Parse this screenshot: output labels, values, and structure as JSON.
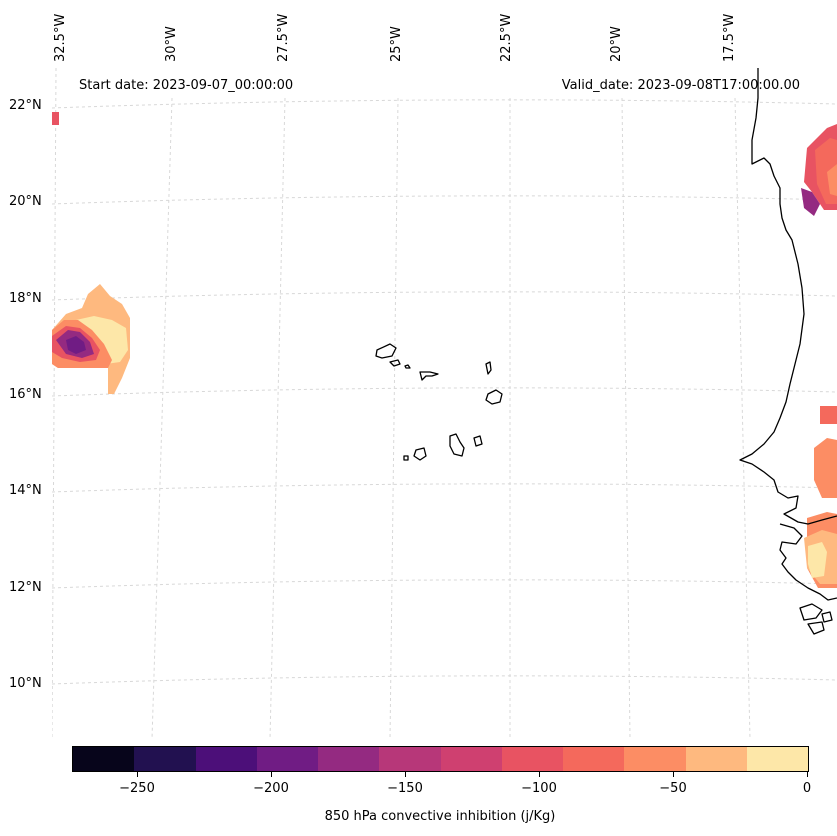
{
  "header": {
    "start_date": "Start date: 2023-09-07_00:00:00",
    "valid_date": "Valid_date: 2023-09-08T17:00:00.00"
  },
  "map": {
    "lon_labels": [
      "32.5°W",
      "30°W",
      "27.5°W",
      "25°W",
      "22.5°W",
      "20°W",
      "17.5°W"
    ],
    "lat_labels": [
      "22°N",
      "20°N",
      "18°N",
      "16°N",
      "14°N",
      "12°N",
      "10°N"
    ],
    "field_colors": {
      "n150": "#b73779",
      "n125": "#cf4070",
      "n100": "#e75263",
      "n75": "#f4685c",
      "n50": "#fc8961",
      "n25": "#feb078",
      "n0": "#fecf92"
    },
    "coastline_color": "#000000",
    "grid_color": "#d8d8d8"
  },
  "colorbar": {
    "title": "850 hPa convective inhibition (j/Kg)",
    "tick_labels": [
      "−250",
      "−200",
      "−150",
      "−100",
      "−50",
      "0"
    ],
    "colors": [
      "#07051b",
      "#221150",
      "#4c0f79",
      "#701c84",
      "#942a81",
      "#b73779",
      "#cf4070",
      "#e85362",
      "#f4695c",
      "#fc8d64",
      "#feb97f",
      "#fde7a8"
    ]
  }
}
